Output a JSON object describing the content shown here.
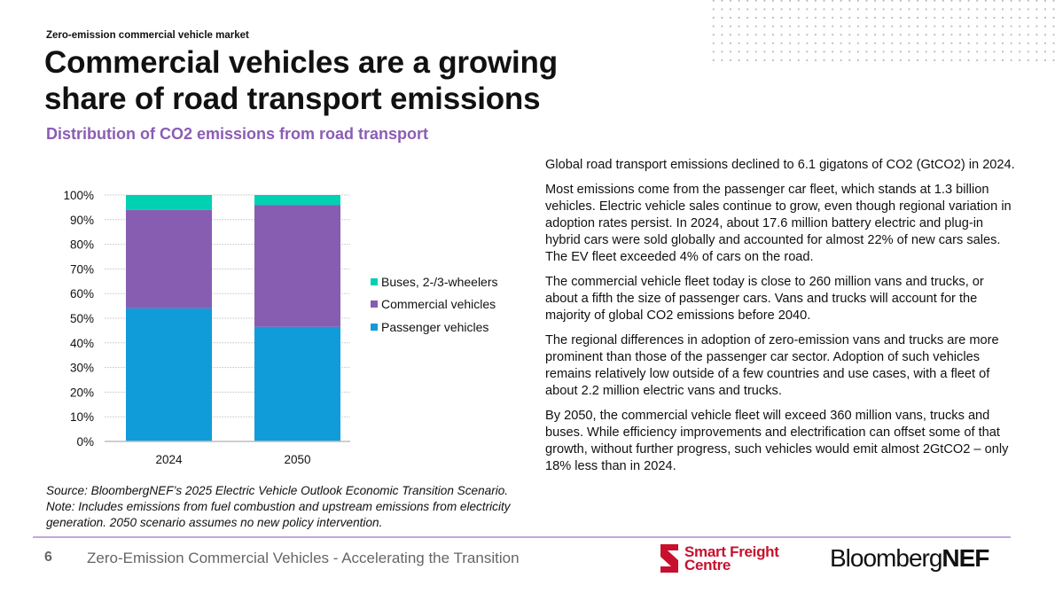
{
  "header": {
    "kicker": "Zero-emission commercial vehicle market",
    "title_line1": "Commercial vehicles are a growing",
    "title_line2": "share of road transport emissions",
    "subtitle": "Distribution of CO2 emissions from road transport"
  },
  "chart_data": {
    "type": "bar",
    "stacked": true,
    "categories": [
      "2024",
      "2050"
    ],
    "series": [
      {
        "name": "Passenger vehicles",
        "values": [
          54,
          46.5
        ],
        "color": "#109cd8"
      },
      {
        "name": "Commercial vehicles",
        "values": [
          40,
          49.5
        ],
        "color": "#875db2"
      },
      {
        "name": "Buses, 2-/3-wheelers",
        "values": [
          6,
          4
        ],
        "color": "#00d1b2"
      }
    ],
    "ylim": [
      0,
      100
    ],
    "yticks": [
      "0%",
      "10%",
      "20%",
      "30%",
      "40%",
      "50%",
      "60%",
      "70%",
      "80%",
      "90%",
      "100%"
    ],
    "grid": true,
    "legend_position": "right"
  },
  "legend": [
    "Buses, 2-/3-wheelers",
    "Commercial vehicles",
    "Passenger vehicles"
  ],
  "body": [
    "Global road transport emissions declined to 6.1 gigatons of CO2 (GtCO2) in 2024.",
    "Most emissions come from the passenger car fleet, which stands at 1.3 billion vehicles. Electric vehicle sales continue to grow, even though regional variation in adoption rates persist. In 2024, about 17.6 million battery electric and plug-in hybrid cars were sold globally and accounted for almost 22% of new cars sales. The EV fleet exceeded 4% of cars on the road.",
    "The commercial vehicle fleet today is close to 260 million vans and trucks, or about a fifth the size of passenger cars. Vans and trucks will account for the majority of global CO2 emissions before 2040.",
    "The regional differences in adoption of zero-emission vans and trucks are more prominent than those of the passenger car sector. Adoption of such vehicles remains relatively low outside of a few countries and use cases, with a fleet of about 2.2 million electric vans and trucks.",
    "By 2050, the commercial vehicle fleet will exceed 360 million vans, trucks and buses. While efficiency improvements and electrification can offset some of that growth, without further progress, such vehicles would emit almost 2GtCO2 – only 18% less than in 2024."
  ],
  "source": "Source: BloombergNEF’s 2025 Electric Vehicle Outlook Economic Transition Scenario. Note: Includes emissions from fuel combustion and upstream emissions from electricity generation. 2050 scenario assumes no new policy intervention.",
  "footer": {
    "page": "6",
    "title": "Zero-Emission Commercial Vehicles - Accelerating the Transition",
    "logo_sfc": "Smart Freight Centre",
    "logo_bnef": "BloombergNEF"
  }
}
